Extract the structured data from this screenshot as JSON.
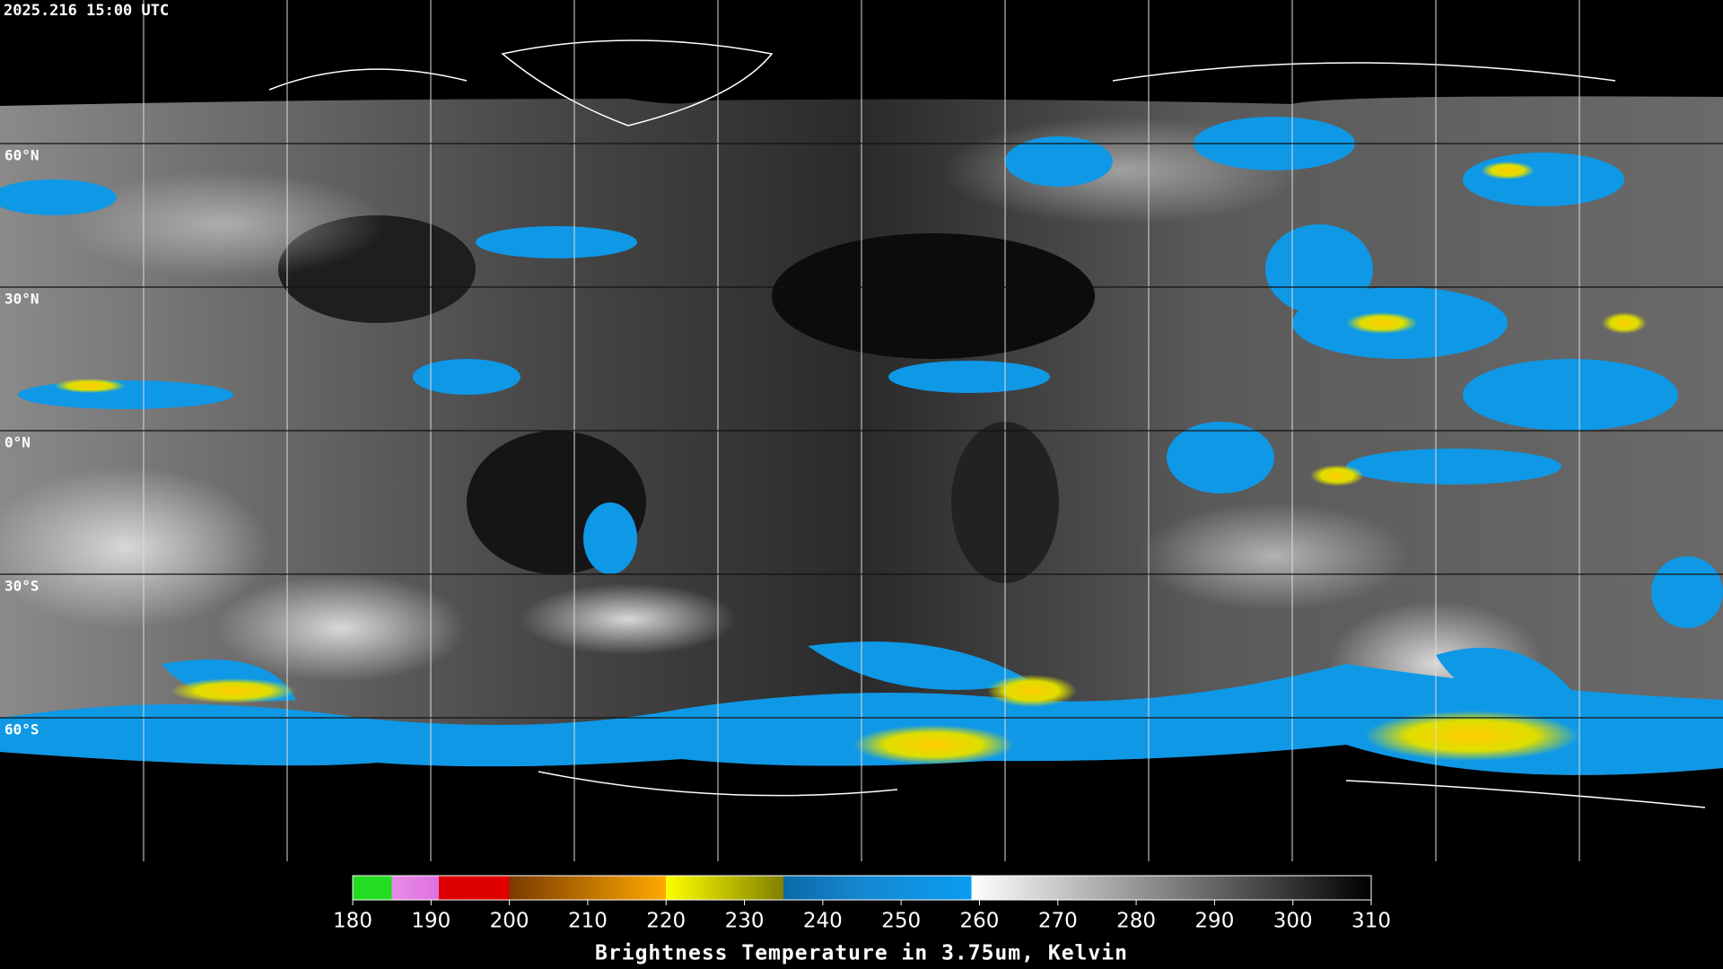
{
  "header": {
    "timestamp": "2025.216 15:00 UTC"
  },
  "map": {
    "lat_ticks": [
      {
        "value": 60,
        "label": "60°N"
      },
      {
        "value": 30,
        "label": "30°N"
      },
      {
        "value": 0,
        "label": "0°N"
      },
      {
        "value": -30,
        "label": "30°S"
      },
      {
        "value": -60,
        "label": "60°S"
      }
    ]
  },
  "colorbar": {
    "title": "Brightness Temperature in 3.75um, Kelvin",
    "range": [
      180,
      310
    ],
    "ticks": [
      180,
      190,
      200,
      210,
      220,
      230,
      240,
      250,
      260,
      270,
      280,
      290,
      300,
      310
    ],
    "stops": [
      {
        "value": 180,
        "color": "#22dd22"
      },
      {
        "value": 185,
        "color": "#22dd22"
      },
      {
        "value": 185,
        "color": "#e58ee5"
      },
      {
        "value": 191,
        "color": "#e070e0"
      },
      {
        "value": 191,
        "color": "#dd0000"
      },
      {
        "value": 200,
        "color": "#e00000"
      },
      {
        "value": 200,
        "color": "#7a3a00"
      },
      {
        "value": 220,
        "color": "#ffaa00"
      },
      {
        "value": 220,
        "color": "#ffff00"
      },
      {
        "value": 235,
        "color": "#808000"
      },
      {
        "value": 235,
        "color": "#0a6aa8"
      },
      {
        "value": 245,
        "color": "#1588d0"
      },
      {
        "value": 259,
        "color": "#0a9cf0"
      },
      {
        "value": 259,
        "color": "#ffffff"
      },
      {
        "value": 310,
        "color": "#000000"
      }
    ]
  }
}
